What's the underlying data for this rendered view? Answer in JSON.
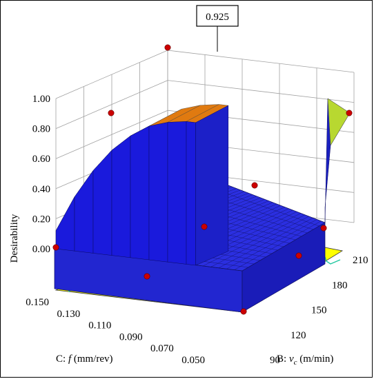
{
  "chart_data": {
    "type": "surface3d",
    "title": "",
    "zlabel": "Desirability",
    "xlabel_prefix": "C: ",
    "xlabel_var": "f",
    "xlabel_unit": " (mm/rev)",
    "ylabel_prefix": "B: ",
    "ylabel_var": "v",
    "ylabel_sub": "c",
    "ylabel_unit": " (m/min)",
    "z_ticks": [
      "0.00",
      "0.20",
      "0.40",
      "0.60",
      "0.80",
      "1.00"
    ],
    "x_ticks": [
      "0.150",
      "0.130",
      "0.110",
      "0.090",
      "0.070",
      "0.050"
    ],
    "y_ticks": [
      "90",
      "120",
      "150",
      "180",
      "210"
    ],
    "x_range": [
      0.05,
      0.15
    ],
    "y_range": [
      90,
      210
    ],
    "z_range": [
      0,
      1
    ],
    "callout_label": "0.925",
    "optimum": {
      "f": 0.15,
      "v": 90,
      "desirability": 0.925
    },
    "desirability_ridge": [
      {
        "f": 0.15,
        "desirability": 0.12
      },
      {
        "f": 0.14,
        "desirability": 0.36
      },
      {
        "f": 0.13,
        "desirability": 0.55
      },
      {
        "f": 0.12,
        "desirability": 0.7
      },
      {
        "f": 0.11,
        "desirability": 0.81
      },
      {
        "f": 0.1,
        "desirability": 0.89
      },
      {
        "f": 0.09,
        "desirability": 0.93
      },
      {
        "f": 0.08,
        "desirability": 0.95
      },
      {
        "f": 0.075,
        "desirability": 0.95
      }
    ],
    "design_points": [
      {
        "f": 0.15,
        "v": 90,
        "desirability": 0.0
      },
      {
        "f": 0.05,
        "v": 90,
        "desirability": 0.0
      },
      {
        "f": 0.05,
        "v": 210,
        "desirability": 0.0
      },
      {
        "f": 0.15,
        "v": 210,
        "desirability": 0.8
      },
      {
        "f": 0.075,
        "v": 90,
        "desirability": 0.8
      },
      {
        "f": 0.075,
        "v": 90,
        "desirability": 1.0
      },
      {
        "f": 0.1,
        "v": 150,
        "desirability": 0.0
      },
      {
        "f": 0.1,
        "v": 210,
        "desirability": 0.0
      },
      {
        "f": 0.1,
        "v": 90,
        "desirability": 0.0
      },
      {
        "f": 0.05,
        "v": 150,
        "desirability": 0.0
      }
    ],
    "colors": {
      "surface_low": "#1a1adc",
      "surface_mid": "#2ec02e",
      "surface_high": "#e07a10",
      "floor": "#ffff00",
      "contour": "#20c8a0",
      "point": "#cc0000"
    },
    "grid": true
  }
}
